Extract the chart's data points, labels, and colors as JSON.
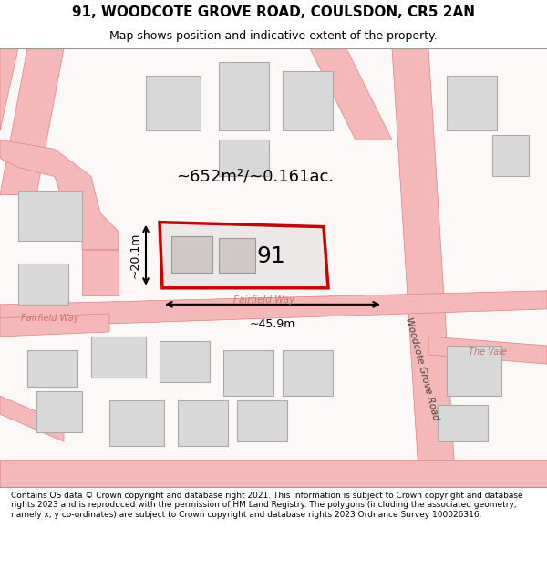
{
  "title": "91, WOODCOTE GROVE ROAD, COULSDON, CR5 2AN",
  "subtitle": "Map shows position and indicative extent of the property.",
  "footer": "Contains OS data © Crown copyright and database right 2021. This information is subject to Crown copyright and database rights 2023 and is reproduced with the permission of HM Land Registry. The polygons (including the associated geometry, namely x, y co-ordinates) are subject to Crown copyright and database rights 2023 Ordnance Survey 100026316.",
  "bg_color": "#ffffff",
  "map_bg": "#f9f0f0",
  "road_color": "#f4b8b8",
  "road_line_color": "#e08080",
  "building_fill": "#d8d8d8",
  "building_edge": "#aaaaaa",
  "highlight_fill": "#e8e0e0",
  "highlight_edge": "#cc0000",
  "highlight_lw": 2.5,
  "area_label": "~652m²/~0.161ac.",
  "property_label": "91",
  "dim_width": "~45.9m",
  "dim_height": "~20.1m",
  "road_label_fairfield": "Fairfield Way",
  "road_label_woodcote": "Woodcote Grove Road",
  "road_label_thevale": "The Vale",
  "road_label_fairfield2": "Fairfield Way"
}
